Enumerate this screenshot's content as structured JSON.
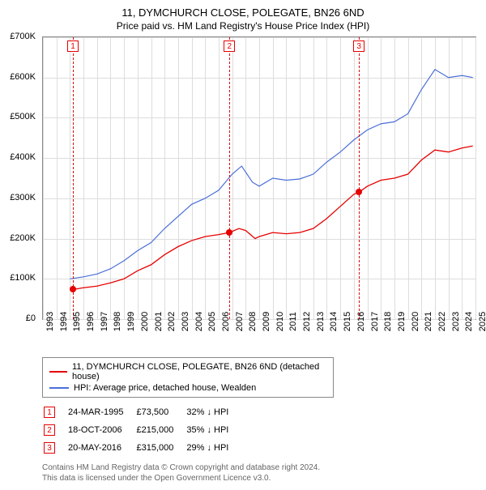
{
  "title": "11, DYMCHURCH CLOSE, POLEGATE, BN26 6ND",
  "subtitle": "Price paid vs. HM Land Registry's House Price Index (HPI)",
  "chart": {
    "type": "line",
    "background_color": "#ffffff",
    "grid_color": "#dddddd",
    "border_color": "#888888",
    "x_years": [
      1993,
      1994,
      1995,
      1996,
      1997,
      1998,
      1999,
      2000,
      2001,
      2002,
      2003,
      2004,
      2005,
      2006,
      2007,
      2008,
      2009,
      2010,
      2011,
      2012,
      2013,
      2014,
      2015,
      2016,
      2017,
      2018,
      2019,
      2020,
      2021,
      2022,
      2023,
      2024,
      2025
    ],
    "xlim": [
      1993,
      2025
    ],
    "ylim": [
      0,
      700000
    ],
    "ytick_step": 100000,
    "yticks": [
      "£0",
      "£100K",
      "£200K",
      "£300K",
      "£400K",
      "£500K",
      "£600K",
      "£700K"
    ],
    "label_fontsize": 11,
    "series": [
      {
        "name": "property",
        "label": "11, DYMCHURCH CLOSE, POLEGATE, BN26 6ND (detached house)",
        "color": "#e60000",
        "line_width": 1.3,
        "data": [
          [
            1995.22,
            73500
          ],
          [
            1996,
            78000
          ],
          [
            1997,
            82000
          ],
          [
            1998,
            90000
          ],
          [
            1999,
            100000
          ],
          [
            2000,
            120000
          ],
          [
            2001,
            135000
          ],
          [
            2002,
            160000
          ],
          [
            2003,
            180000
          ],
          [
            2004,
            195000
          ],
          [
            2005,
            205000
          ],
          [
            2006,
            210000
          ],
          [
            2006.8,
            215000
          ],
          [
            2007.5,
            225000
          ],
          [
            2008,
            220000
          ],
          [
            2008.7,
            200000
          ],
          [
            2009,
            205000
          ],
          [
            2010,
            215000
          ],
          [
            2011,
            212000
          ],
          [
            2012,
            215000
          ],
          [
            2013,
            225000
          ],
          [
            2014,
            250000
          ],
          [
            2015,
            280000
          ],
          [
            2016,
            310000
          ],
          [
            2016.38,
            315000
          ],
          [
            2017,
            330000
          ],
          [
            2018,
            345000
          ],
          [
            2019,
            350000
          ],
          [
            2020,
            360000
          ],
          [
            2021,
            395000
          ],
          [
            2022,
            420000
          ],
          [
            2023,
            415000
          ],
          [
            2024,
            425000
          ],
          [
            2024.8,
            430000
          ]
        ]
      },
      {
        "name": "hpi",
        "label": "HPI: Average price, detached house, Wealden",
        "color": "#4a6fd8",
        "line_width": 1.2,
        "data": [
          [
            1995,
            100000
          ],
          [
            1996,
            105000
          ],
          [
            1997,
            112000
          ],
          [
            1998,
            125000
          ],
          [
            1999,
            145000
          ],
          [
            2000,
            170000
          ],
          [
            2001,
            190000
          ],
          [
            2002,
            225000
          ],
          [
            2003,
            255000
          ],
          [
            2004,
            285000
          ],
          [
            2005,
            300000
          ],
          [
            2006,
            320000
          ],
          [
            2007,
            360000
          ],
          [
            2007.7,
            380000
          ],
          [
            2008.5,
            340000
          ],
          [
            2009,
            330000
          ],
          [
            2010,
            350000
          ],
          [
            2011,
            345000
          ],
          [
            2012,
            348000
          ],
          [
            2013,
            360000
          ],
          [
            2014,
            390000
          ],
          [
            2015,
            415000
          ],
          [
            2016,
            445000
          ],
          [
            2017,
            470000
          ],
          [
            2018,
            485000
          ],
          [
            2019,
            490000
          ],
          [
            2020,
            510000
          ],
          [
            2021,
            570000
          ],
          [
            2022,
            620000
          ],
          [
            2023,
            600000
          ],
          [
            2024,
            605000
          ],
          [
            2024.8,
            600000
          ]
        ]
      }
    ],
    "sale_markers": [
      {
        "n": "1",
        "year": 1995.22,
        "price": 73500
      },
      {
        "n": "2",
        "year": 2006.8,
        "price": 215000
      },
      {
        "n": "3",
        "year": 2016.38,
        "price": 315000
      }
    ],
    "marker_color": "#e60000",
    "point_fill": "#e60000"
  },
  "sales": [
    {
      "n": "1",
      "date": "24-MAR-1995",
      "price": "£73,500",
      "delta": "32% ↓ HPI"
    },
    {
      "n": "2",
      "date": "18-OCT-2006",
      "price": "£215,000",
      "delta": "35% ↓ HPI"
    },
    {
      "n": "3",
      "date": "20-MAY-2016",
      "price": "£315,000",
      "delta": "29% ↓ HPI"
    }
  ],
  "footnote_line1": "Contains HM Land Registry data © Crown copyright and database right 2024.",
  "footnote_line2": "This data is licensed under the Open Government Licence v3.0.",
  "colors": {
    "text": "#000000",
    "footnote": "#666666"
  }
}
